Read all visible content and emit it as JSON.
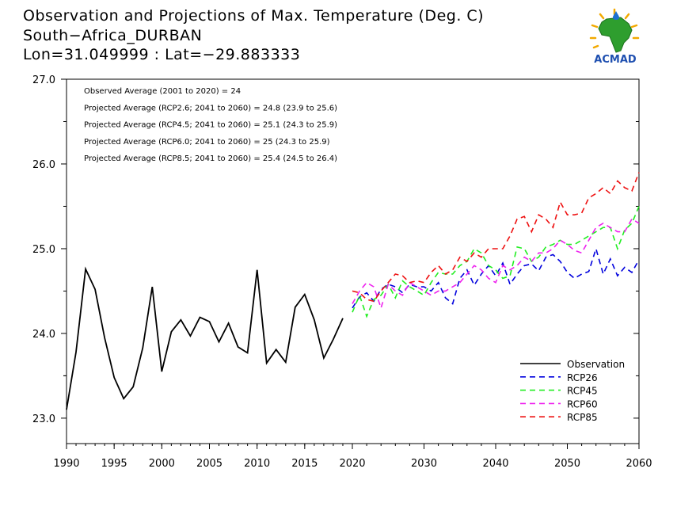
{
  "header": {
    "title": "Observation and Projections of Max. Temperature (Deg. C)",
    "location": "South−Africa_DURBAN",
    "coords": "Lon=31.049999 : Lat=−29.883333"
  },
  "logo": {
    "text": "ACMAD",
    "icon": "acmad-africa-logo"
  },
  "chart_data": {
    "type": "line",
    "title": "Observation and Projections of Max. Temperature (Deg. C)",
    "xlabel": "",
    "ylabel": "",
    "xlim": [
      1990,
      2060
    ],
    "ylim": [
      22.7,
      27.0
    ],
    "y_ticks": [
      "23.0",
      "24.0",
      "25.0",
      "26.0",
      "27.0"
    ],
    "x_ticks": [
      "1990",
      "1995",
      "2000",
      "2005",
      "2010",
      "2015",
      "2020",
      "2030",
      "2040",
      "2050",
      "2060"
    ],
    "annotations": [
      "Observed Average (2001 to 2020) = 24",
      "Projected Average (RCP2.6; 2041 to 2060) = 24.8 (23.9 to 25.6)",
      "Projected Average (RCP4.5; 2041 to 2060) = 25.1 (24.3 to 25.9)",
      "Projected Average (RCP6.0; 2041 to 2060) = 25 (24.3 to 25.9)",
      "Projected Average (RCP8.5; 2041 to 2060) = 25.4 (24.5 to 26.4)"
    ],
    "legend_position": "bottom-right",
    "series": [
      {
        "name": "Observation",
        "color": "#000000",
        "dashed": false,
        "x": [
          1990,
          1991,
          1992,
          1993,
          1994,
          1995,
          1996,
          1997,
          1998,
          1999,
          2000,
          2001,
          2002,
          2003,
          2004,
          2005,
          2006,
          2007,
          2008,
          2009,
          2010,
          2011,
          2012,
          2013,
          2014,
          2015,
          2016,
          2017,
          2018,
          2019,
          2020
        ],
        "values": [
          23.1,
          23.78,
          24.76,
          24.52,
          23.95,
          23.48,
          23.23,
          23.37,
          23.83,
          24.55,
          23.55,
          24.02,
          24.16,
          23.97,
          24.19,
          24.14,
          23.9,
          24.12,
          23.84,
          23.77,
          24.75,
          23.65,
          23.81,
          23.66,
          24.31,
          24.46,
          24.16,
          23.71,
          23.93,
          24.18,
          null
        ]
      },
      {
        "name": "RCP26",
        "color": "#0000dd",
        "dashed": true,
        "x": [
          2020,
          2021,
          2022,
          2023,
          2024,
          2025,
          2026,
          2027,
          2028,
          2029,
          2030,
          2031,
          2032,
          2033,
          2034,
          2035,
          2036,
          2037,
          2038,
          2039,
          2040,
          2041,
          2042,
          2043,
          2044,
          2045,
          2046,
          2047,
          2048,
          2049,
          2050,
          2051,
          2052,
          2053,
          2054,
          2055,
          2056,
          2057,
          2058,
          2059,
          2060
        ],
        "values": [
          24.3,
          24.43,
          24.48,
          24.38,
          24.52,
          24.58,
          24.55,
          24.48,
          24.58,
          24.55,
          24.55,
          24.5,
          24.6,
          24.42,
          24.35,
          24.65,
          24.75,
          24.57,
          24.7,
          24.8,
          24.68,
          24.83,
          24.58,
          24.7,
          24.8,
          24.82,
          24.74,
          24.9,
          24.93,
          24.85,
          24.72,
          24.65,
          24.7,
          24.73,
          25.0,
          24.7,
          24.88,
          24.68,
          24.78,
          24.72,
          24.87
        ]
      },
      {
        "name": "RCP45",
        "color": "#22ee22",
        "dashed": true,
        "x": [
          2020,
          2021,
          2022,
          2023,
          2024,
          2025,
          2026,
          2027,
          2028,
          2029,
          2030,
          2031,
          2032,
          2033,
          2034,
          2035,
          2036,
          2037,
          2038,
          2039,
          2040,
          2041,
          2042,
          2043,
          2044,
          2045,
          2046,
          2047,
          2048,
          2049,
          2050,
          2051,
          2052,
          2053,
          2054,
          2055,
          2056,
          2057,
          2058,
          2059,
          2060
        ],
        "values": [
          24.25,
          24.45,
          24.2,
          24.4,
          24.45,
          24.58,
          24.42,
          24.62,
          24.55,
          24.5,
          24.45,
          24.6,
          24.72,
          24.7,
          24.7,
          24.8,
          24.85,
          25.0,
          24.95,
          24.8,
          24.75,
          24.65,
          24.68,
          25.02,
          25.0,
          24.85,
          24.9,
          25.02,
          25.05,
          25.1,
          25.05,
          25.05,
          25.1,
          25.15,
          25.2,
          25.25,
          25.25,
          25.0,
          25.22,
          25.3,
          25.5
        ]
      },
      {
        "name": "RCP60",
        "color": "#ee22ee",
        "dashed": true,
        "x": [
          2020,
          2021,
          2022,
          2023,
          2024,
          2025,
          2026,
          2027,
          2028,
          2029,
          2030,
          2031,
          2032,
          2033,
          2034,
          2035,
          2036,
          2037,
          2038,
          2039,
          2040,
          2041,
          2042,
          2043,
          2044,
          2045,
          2046,
          2047,
          2048,
          2049,
          2050,
          2051,
          2052,
          2053,
          2054,
          2055,
          2056,
          2057,
          2058,
          2059,
          2060
        ],
        "values": [
          24.35,
          24.5,
          24.6,
          24.55,
          24.3,
          24.58,
          24.5,
          24.45,
          24.6,
          24.55,
          24.5,
          24.45,
          24.5,
          24.5,
          24.55,
          24.6,
          24.7,
          24.8,
          24.75,
          24.65,
          24.6,
          24.8,
          24.75,
          24.8,
          24.9,
          24.85,
          24.95,
          24.95,
          25.0,
          25.1,
          25.05,
          24.98,
          24.95,
          25.1,
          25.25,
          25.3,
          25.25,
          25.2,
          25.2,
          25.35,
          25.3
        ]
      },
      {
        "name": "RCP85",
        "color": "#ee1111",
        "dashed": true,
        "x": [
          2020,
          2021,
          2022,
          2023,
          2024,
          2025,
          2026,
          2027,
          2028,
          2029,
          2030,
          2031,
          2032,
          2033,
          2034,
          2035,
          2036,
          2037,
          2038,
          2039,
          2040,
          2041,
          2042,
          2043,
          2044,
          2045,
          2046,
          2047,
          2048,
          2049,
          2050,
          2051,
          2052,
          2053,
          2054,
          2055,
          2056,
          2057,
          2058,
          2059,
          2060
        ],
        "values": [
          24.5,
          24.48,
          24.4,
          24.38,
          24.5,
          24.6,
          24.7,
          24.68,
          24.6,
          24.62,
          24.6,
          24.72,
          24.8,
          24.7,
          24.75,
          24.9,
          24.85,
          24.95,
          24.9,
          25.0,
          25.0,
          25.0,
          25.15,
          25.35,
          25.38,
          25.2,
          25.4,
          25.35,
          25.25,
          25.55,
          25.4,
          25.4,
          25.42,
          25.6,
          25.65,
          25.72,
          25.65,
          25.8,
          25.72,
          25.68,
          25.9
        ]
      }
    ]
  }
}
